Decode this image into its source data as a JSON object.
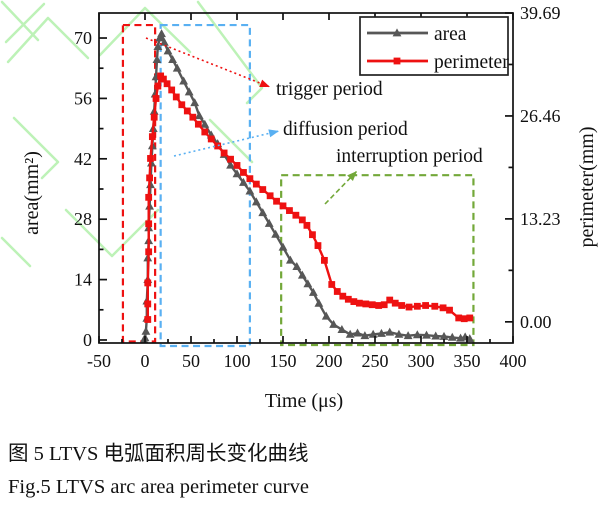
{
  "figure": {
    "caption_zh": "图 5 LTVS 电弧面积周长变化曲线",
    "caption_en": "Fig.5 LTVS arc area perimeter curve"
  },
  "chart_data": {
    "type": "line",
    "title": "",
    "xlabel": "Time (μs)",
    "ylabel_left": "area(mm²)",
    "ylabel_right": "perimeter(mm)",
    "xlim": [
      -50,
      400
    ],
    "ylim_left": [
      -0.7,
      75.8
    ],
    "ylim_right": [
      -2.72,
      39.69
    ],
    "grid": false,
    "legend_position": "top-right",
    "xticks": [
      -50,
      0,
      50,
      100,
      150,
      200,
      250,
      300,
      350,
      400
    ],
    "xtick_labels": [
      "-50",
      "0",
      "50",
      "100",
      "150",
      "200",
      "250",
      "300",
      "350",
      "400"
    ],
    "yticks_left": [
      0,
      14,
      28,
      42,
      56,
      70
    ],
    "ytick_labels_left": [
      "0",
      "14",
      "28",
      "42",
      "56",
      "70"
    ],
    "yticks_right": [
      0,
      13.23,
      26.46,
      39.69
    ],
    "ytick_labels_right": [
      "0.00",
      "13.23",
      "26.46",
      "39.69"
    ],
    "x_minor_step": 25,
    "y_left_minor_step": 7,
    "y_right_minor_step": 6.615,
    "legend": {
      "items": [
        {
          "label": "area"
        },
        {
          "label": "perimeter"
        }
      ]
    },
    "series": [
      {
        "name": "area",
        "axis": "left",
        "color": "#575757",
        "marker": "triangle",
        "points": [
          [
            -1,
            0
          ],
          [
            0,
            0.5
          ],
          [
            1,
            2
          ],
          [
            2,
            5
          ],
          [
            2,
            9
          ],
          [
            3,
            14
          ],
          [
            3,
            19
          ],
          [
            4,
            23
          ],
          [
            4,
            26
          ],
          [
            5,
            31
          ],
          [
            6,
            36
          ],
          [
            7,
            41
          ],
          [
            8,
            45
          ],
          [
            9,
            49
          ],
          [
            10,
            53
          ],
          [
            11,
            57
          ],
          [
            12,
            61
          ],
          [
            13,
            65
          ],
          [
            14,
            68
          ],
          [
            16,
            70
          ],
          [
            18,
            71
          ],
          [
            21,
            69
          ],
          [
            25,
            67
          ],
          [
            30,
            65
          ],
          [
            35,
            63
          ],
          [
            42,
            60
          ],
          [
            48,
            57.5
          ],
          [
            54,
            55
          ],
          [
            59,
            52
          ],
          [
            65,
            50
          ],
          [
            72,
            47.5
          ],
          [
            79,
            45.5
          ],
          [
            86,
            43
          ],
          [
            93,
            40.5
          ],
          [
            100,
            38.5
          ],
          [
            107,
            36.5
          ],
          [
            114,
            34.5
          ],
          [
            121,
            32
          ],
          [
            128,
            29.5
          ],
          [
            135,
            27
          ],
          [
            142,
            24.5
          ],
          [
            150,
            21.5
          ],
          [
            158,
            18.5
          ],
          [
            165,
            17
          ],
          [
            171,
            15
          ],
          [
            177,
            13
          ],
          [
            183,
            11
          ],
          [
            189,
            8.5
          ],
          [
            197,
            5.5
          ],
          [
            205,
            3.6
          ],
          [
            214,
            2.4
          ],
          [
            223,
            1.3
          ],
          [
            231,
            1.6
          ],
          [
            239,
            1.0
          ],
          [
            248,
            1.3
          ],
          [
            257,
            1.5
          ],
          [
            266,
            1.8
          ],
          [
            276,
            1.3
          ],
          [
            286,
            1.0
          ],
          [
            296,
            1.2
          ],
          [
            306,
            1.1
          ],
          [
            316,
            0.9
          ],
          [
            325,
            0.8
          ],
          [
            334,
            0.6
          ],
          [
            343,
            0.4
          ],
          [
            348,
            0.7
          ],
          [
            353,
            0.3
          ]
        ]
      },
      {
        "name": "perimeter",
        "axis": "right",
        "color": "#ee1111",
        "marker": "square",
        "points": [
          [
            3,
            0.3
          ],
          [
            3,
            2.3
          ],
          [
            3,
            5.0
          ],
          [
            4,
            9.0
          ],
          [
            4,
            12.6
          ],
          [
            4,
            16.0
          ],
          [
            5,
            18.5
          ],
          [
            6,
            21.0
          ],
          [
            8,
            23.8
          ],
          [
            10,
            26.3
          ],
          [
            12,
            28.7
          ],
          [
            14,
            30.3
          ],
          [
            17,
            31.6
          ],
          [
            20,
            31.2
          ],
          [
            24,
            30.6
          ],
          [
            29,
            29.8
          ],
          [
            34,
            28.9
          ],
          [
            40,
            27.9
          ],
          [
            46,
            27.1
          ],
          [
            52,
            26.3
          ],
          [
            58,
            25.4
          ],
          [
            65,
            24.4
          ],
          [
            72,
            23.5
          ],
          [
            79,
            22.6
          ],
          [
            86,
            21.7
          ],
          [
            93,
            20.9
          ],
          [
            100,
            20.1
          ],
          [
            107,
            19.2
          ],
          [
            114,
            18.4
          ],
          [
            121,
            17.7
          ],
          [
            128,
            17.0
          ],
          [
            136,
            16.2
          ],
          [
            143,
            15.5
          ],
          [
            150,
            14.9
          ],
          [
            157,
            14.3
          ],
          [
            164,
            13.7
          ],
          [
            171,
            13.1
          ],
          [
            176,
            12.4
          ],
          [
            182,
            11.2
          ],
          [
            188,
            9.8
          ],
          [
            195,
            7.9
          ],
          [
            203,
            4.8
          ],
          [
            209,
            3.9
          ],
          [
            215,
            3.3
          ],
          [
            221,
            2.9
          ],
          [
            227,
            2.6
          ],
          [
            233,
            2.4
          ],
          [
            240,
            2.3
          ],
          [
            247,
            2.2
          ],
          [
            254,
            2.1
          ],
          [
            260,
            2.2
          ],
          [
            266,
            2.8
          ],
          [
            272,
            2.4
          ],
          [
            279,
            2.1
          ],
          [
            287,
            1.9
          ],
          [
            296,
            2.0
          ],
          [
            305,
            2.1
          ],
          [
            315,
            2.0
          ],
          [
            324,
            1.8
          ],
          [
            331,
            1.5
          ],
          [
            341,
            0.5
          ],
          [
            347,
            0.4
          ],
          [
            353,
            0.5
          ]
        ]
      }
    ],
    "periods": [
      {
        "label": "trigger period",
        "color": "#ee1111",
        "t_start": -24,
        "t_end": 11,
        "top_left_axis": 73
      },
      {
        "label": "diffusion period",
        "color": "#59b0f2",
        "t_start": 17,
        "t_end": 114,
        "top_left_axis": 73
      },
      {
        "label": "interruption period",
        "color": "#73a839",
        "t_start": 148,
        "t_end": 357,
        "top_left_axis": 38.2
      }
    ],
    "watermark_color": "#bdf2b7",
    "text_color": "#111111"
  }
}
